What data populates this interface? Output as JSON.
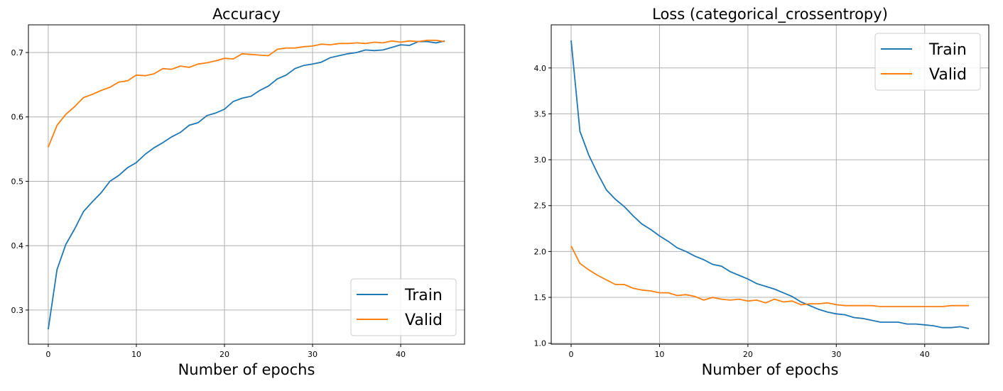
{
  "chart_data": [
    {
      "type": "line",
      "title": "Accuracy",
      "xlabel": "Number of epochs",
      "ylabel": "",
      "xlim": [
        -2.25,
        47.25
      ],
      "ylim": [
        0.247,
        0.743
      ],
      "xticks": [
        0,
        10,
        20,
        30,
        40
      ],
      "yticks": [
        0.3,
        0.4,
        0.5,
        0.6,
        0.7
      ],
      "ytick_labels": [
        "0.3",
        "0.4",
        "0.5",
        "0.6",
        "0.7"
      ],
      "grid": true,
      "legend_placement": "bottom-right",
      "x": [
        0,
        1,
        2,
        3,
        4,
        5,
        6,
        7,
        8,
        9,
        10,
        11,
        12,
        13,
        14,
        15,
        16,
        17,
        18,
        19,
        20,
        21,
        22,
        23,
        24,
        25,
        26,
        27,
        28,
        29,
        30,
        31,
        32,
        33,
        34,
        35,
        36,
        37,
        38,
        39,
        40,
        41,
        42,
        43,
        44,
        45
      ],
      "series": [
        {
          "name": "Train",
          "color": "#1f77b4",
          "values": [
            0.27,
            0.363,
            0.402,
            0.426,
            0.453,
            0.468,
            0.482,
            0.5,
            0.509,
            0.521,
            0.529,
            0.542,
            0.552,
            0.56,
            0.569,
            0.576,
            0.587,
            0.591,
            0.602,
            0.606,
            0.612,
            0.624,
            0.629,
            0.632,
            0.641,
            0.648,
            0.659,
            0.665,
            0.675,
            0.68,
            0.682,
            0.685,
            0.692,
            0.695,
            0.698,
            0.7,
            0.704,
            0.703,
            0.704,
            0.708,
            0.712,
            0.711,
            0.717,
            0.717,
            0.715,
            0.718
          ]
        },
        {
          "name": "Valid",
          "color": "#ff7f0e",
          "values": [
            0.553,
            0.587,
            0.604,
            0.616,
            0.63,
            0.635,
            0.641,
            0.646,
            0.654,
            0.656,
            0.665,
            0.664,
            0.667,
            0.675,
            0.674,
            0.679,
            0.677,
            0.682,
            0.684,
            0.687,
            0.691,
            0.69,
            0.698,
            0.697,
            0.696,
            0.695,
            0.705,
            0.707,
            0.707,
            0.709,
            0.71,
            0.713,
            0.712,
            0.714,
            0.714,
            0.715,
            0.714,
            0.716,
            0.715,
            0.718,
            0.716,
            0.718,
            0.717,
            0.719,
            0.719,
            0.717
          ]
        }
      ]
    },
    {
      "type": "line",
      "title": "Loss (categorical_crossentropy)",
      "xlabel": "Number of epochs",
      "ylabel": "",
      "xlim": [
        -2.25,
        47.25
      ],
      "ylim": [
        0.99,
        4.47
      ],
      "xticks": [
        0,
        10,
        20,
        30,
        40
      ],
      "yticks": [
        1.0,
        1.5,
        2.0,
        2.5,
        3.0,
        3.5,
        4.0
      ],
      "ytick_labels": [
        "1.0",
        "1.5",
        "2.0",
        "2.5",
        "3.0",
        "3.5",
        "4.0"
      ],
      "grid": true,
      "legend_placement": "top-right",
      "x": [
        0,
        1,
        2,
        3,
        4,
        5,
        6,
        7,
        8,
        9,
        10,
        11,
        12,
        13,
        14,
        15,
        16,
        17,
        18,
        19,
        20,
        21,
        22,
        23,
        24,
        25,
        26,
        27,
        28,
        29,
        30,
        31,
        32,
        33,
        34,
        35,
        36,
        37,
        38,
        39,
        40,
        41,
        42,
        43,
        44,
        45
      ],
      "series": [
        {
          "name": "Train",
          "color": "#1f77b4",
          "values": [
            4.3,
            3.31,
            3.05,
            2.85,
            2.67,
            2.57,
            2.49,
            2.39,
            2.3,
            2.24,
            2.17,
            2.11,
            2.04,
            2.0,
            1.95,
            1.91,
            1.86,
            1.84,
            1.78,
            1.74,
            1.7,
            1.65,
            1.62,
            1.59,
            1.55,
            1.51,
            1.45,
            1.41,
            1.37,
            1.34,
            1.32,
            1.31,
            1.28,
            1.27,
            1.25,
            1.23,
            1.23,
            1.23,
            1.21,
            1.21,
            1.2,
            1.19,
            1.17,
            1.17,
            1.18,
            1.16
          ]
        },
        {
          "name": "Valid",
          "color": "#ff7f0e",
          "values": [
            2.06,
            1.87,
            1.8,
            1.74,
            1.69,
            1.64,
            1.64,
            1.6,
            1.58,
            1.57,
            1.55,
            1.55,
            1.52,
            1.53,
            1.51,
            1.47,
            1.5,
            1.48,
            1.47,
            1.48,
            1.46,
            1.47,
            1.44,
            1.48,
            1.45,
            1.46,
            1.42,
            1.43,
            1.43,
            1.44,
            1.42,
            1.41,
            1.41,
            1.41,
            1.41,
            1.4,
            1.4,
            1.4,
            1.4,
            1.4,
            1.4,
            1.4,
            1.4,
            1.41,
            1.41,
            1.41
          ]
        }
      ]
    }
  ]
}
